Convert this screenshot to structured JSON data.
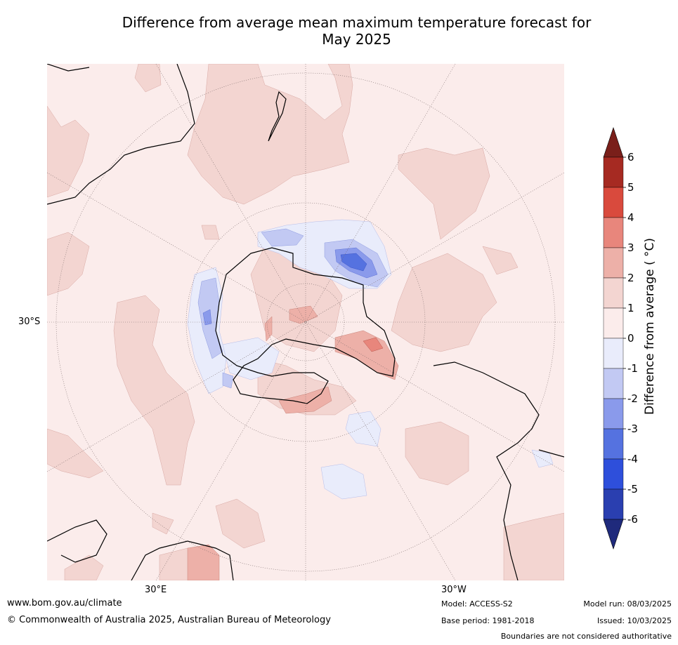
{
  "title_line1": "Difference from average mean maximum temperature forecast for",
  "title_line2": "May 2025",
  "axis_labels": {
    "lat": "30°S",
    "lon_left": "30°E",
    "lon_right": "30°W"
  },
  "colorbar": {
    "label": "Difference from average ( °C)",
    "ticks": [
      "6",
      "5",
      "4",
      "3",
      "2",
      "1",
      "0",
      "-1",
      "-2",
      "-3",
      "-4",
      "-5",
      "-6"
    ],
    "colors": {
      "gt6": "#7a1f1a",
      "5_6": "#a62a22",
      "4_5": "#d94a3d",
      "3_4": "#e8867c",
      "2_3": "#edb0a8",
      "1_2": "#f3d5d1",
      "0_1": "#fbeceb",
      "m1_0": "#e9ecfb",
      "m2_m1": "#c2c9f3",
      "m3_m2": "#8a9aeb",
      "m4_m3": "#5572e0",
      "m5_m4": "#2e4fdb",
      "m6_m5": "#2a3fb0",
      "lt_m6": "#1f2a7c"
    }
  },
  "footer": {
    "url": "www.bom.gov.au/climate",
    "copyright": "© Commonwealth of Australia 2025, Australian Bureau of Meteorology",
    "model": "Model: ACCESS-S2",
    "base_period": "Base period: 1981-2018",
    "model_run": "Model run: 08/03/2025",
    "issued": "Issued: 10/03/2025",
    "disclaimer": "Boundaries are not considered authoritative"
  }
}
